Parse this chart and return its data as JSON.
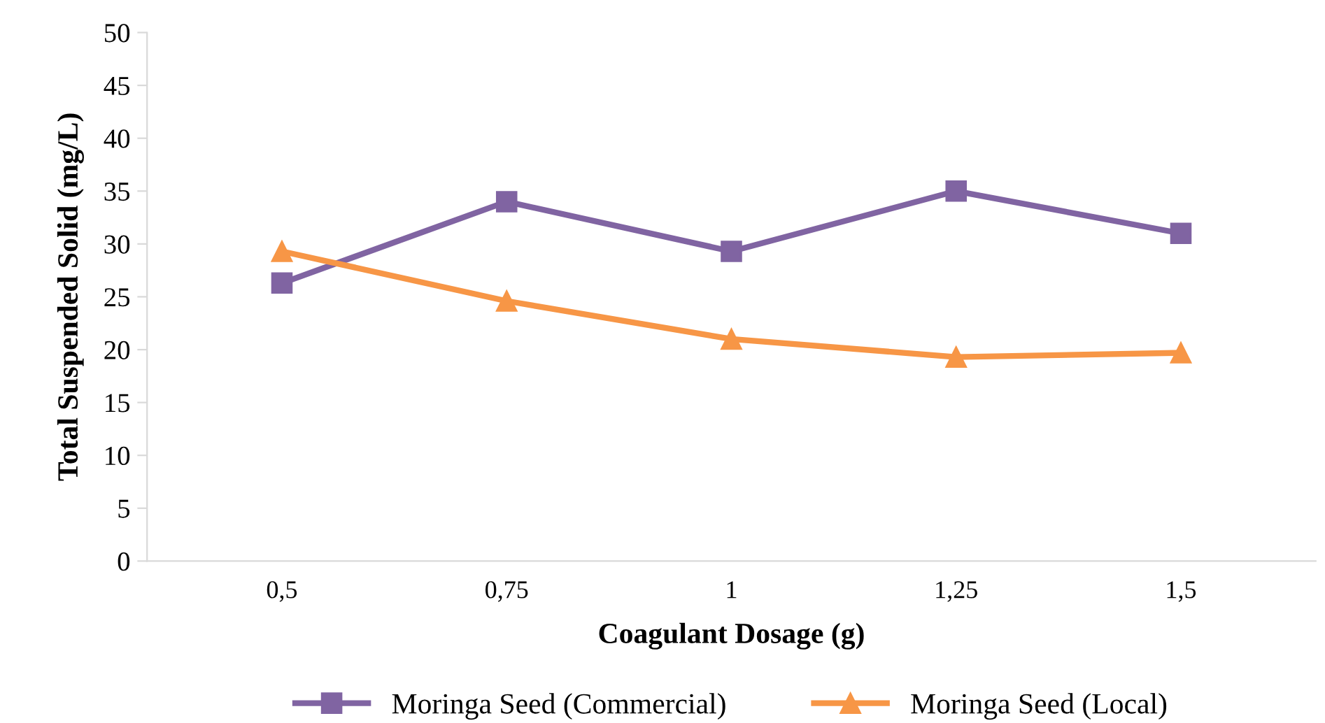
{
  "chart_data": {
    "type": "line",
    "xlabel": "Coagulant Dosage (g)",
    "ylabel": "Total Suspended Solid (mg/L)",
    "categories": [
      "0,5",
      "0,75",
      "1",
      "1,25",
      "1,5"
    ],
    "series": [
      {
        "name": "Moringa Seed (Commercial)",
        "color": "#8064a2",
        "marker": "square",
        "values": [
          26.3,
          34,
          29.3,
          35,
          31
        ]
      },
      {
        "name": "Moringa Seed (Local)",
        "color": "#f79646",
        "marker": "triangle",
        "values": [
          29.3,
          24.6,
          21,
          19.3,
          19.7
        ]
      }
    ],
    "ylim": [
      0,
      50
    ],
    "yticks": [
      0,
      5,
      10,
      15,
      20,
      25,
      30,
      35,
      40,
      45,
      50
    ],
    "grid": false,
    "legend": "bottom"
  }
}
